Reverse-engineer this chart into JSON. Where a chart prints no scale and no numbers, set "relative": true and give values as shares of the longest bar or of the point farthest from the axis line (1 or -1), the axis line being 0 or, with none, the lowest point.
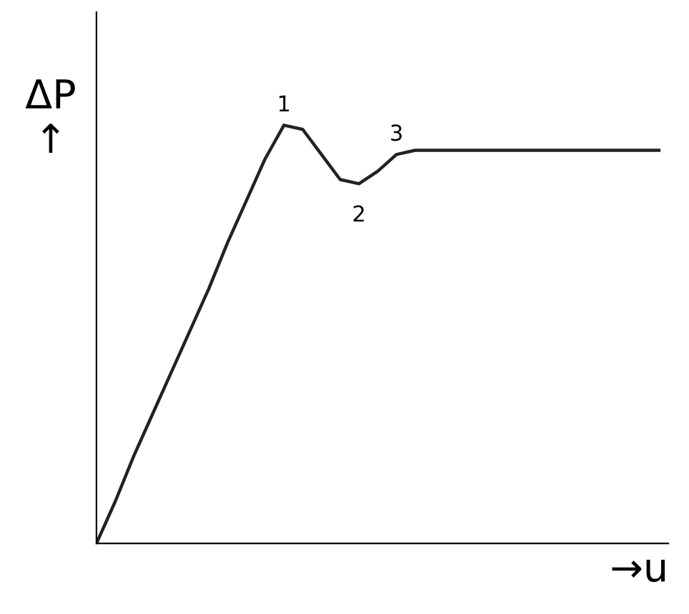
{
  "chart_data": {
    "type": "line",
    "relative": true,
    "xlabel": "→u",
    "ylabel": "ΔP\n↑",
    "categories": [
      null,
      null,
      null,
      null,
      null,
      null,
      null,
      null,
      null,
      null,
      null,
      null,
      null,
      null,
      null,
      null,
      null,
      null,
      null,
      null,
      null,
      null,
      null,
      null,
      null,
      null,
      null,
      null,
      null,
      null,
      null
    ],
    "series": [
      {
        "color": "#222222",
        "values": [
          0,
          0.1,
          0.21,
          0.31,
          0.41,
          0.51,
          0.61,
          0.72,
          0.82,
          0.92,
          1.0,
          0.99,
          0.93,
          0.87,
          0.86,
          0.89,
          0.93,
          0.94,
          0.94,
          0.94,
          0.94,
          0.94,
          0.94,
          0.94,
          0.94,
          0.94,
          0.94,
          0.94,
          0.94,
          0.94,
          0.94
        ]
      }
    ],
    "annotations": [
      {
        "text": "1",
        "y": 1.0
      },
      {
        "text": "2",
        "y": 0.86
      },
      {
        "text": "3",
        "y": 0.93
      }
    ],
    "marker": "none",
    "line_style": "solid"
  }
}
